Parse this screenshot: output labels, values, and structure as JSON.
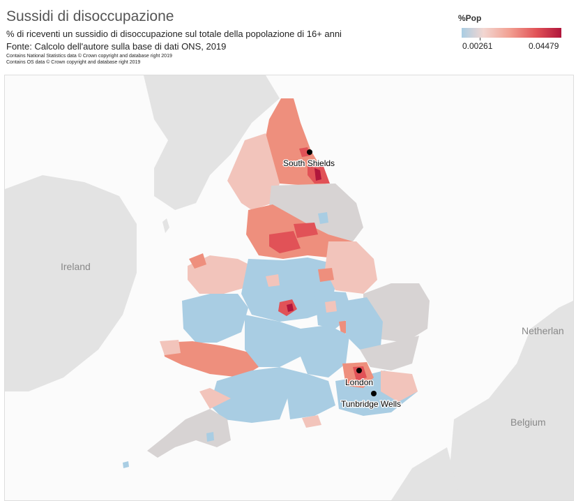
{
  "header": {
    "title": "Sussidi di disoccupazione",
    "subtitle": "% di riceventi un sussidio di disoccupazione sul totale della popolazione di 16+ anni",
    "source": "Fonte: Calcolo dell'autore sulla base di dati ONS, 2019",
    "credit_ons": "Contains National Statistics data © Crown copyright and database right 2019",
    "credit_os": "Contains OS data © Crown copyright and database right 2019"
  },
  "legend": {
    "title": "%Pop",
    "min_label": "0.00261",
    "max_label": "0.04479",
    "min_value": 0.00261,
    "max_value": 0.04479,
    "colors": [
      "#a9cde3",
      "#f2d6d1",
      "#f2a092",
      "#e15257",
      "#b0163c"
    ]
  },
  "map": {
    "background_labels": {
      "ireland": "Ireland",
      "netherlands": "Netherlan",
      "belgium": "Belgium"
    },
    "cities": [
      {
        "name": "South Shields"
      },
      {
        "name": "London"
      },
      {
        "name": "Tunbridge Wells"
      }
    ],
    "colors": {
      "land": "#e3e3e3",
      "no_data": "#d7d3d3",
      "low": "#a9cde3",
      "mid_low": "#f2c4bb",
      "mid": "#ee8f7d",
      "high": "#e15257",
      "max": "#b0163c"
    }
  }
}
